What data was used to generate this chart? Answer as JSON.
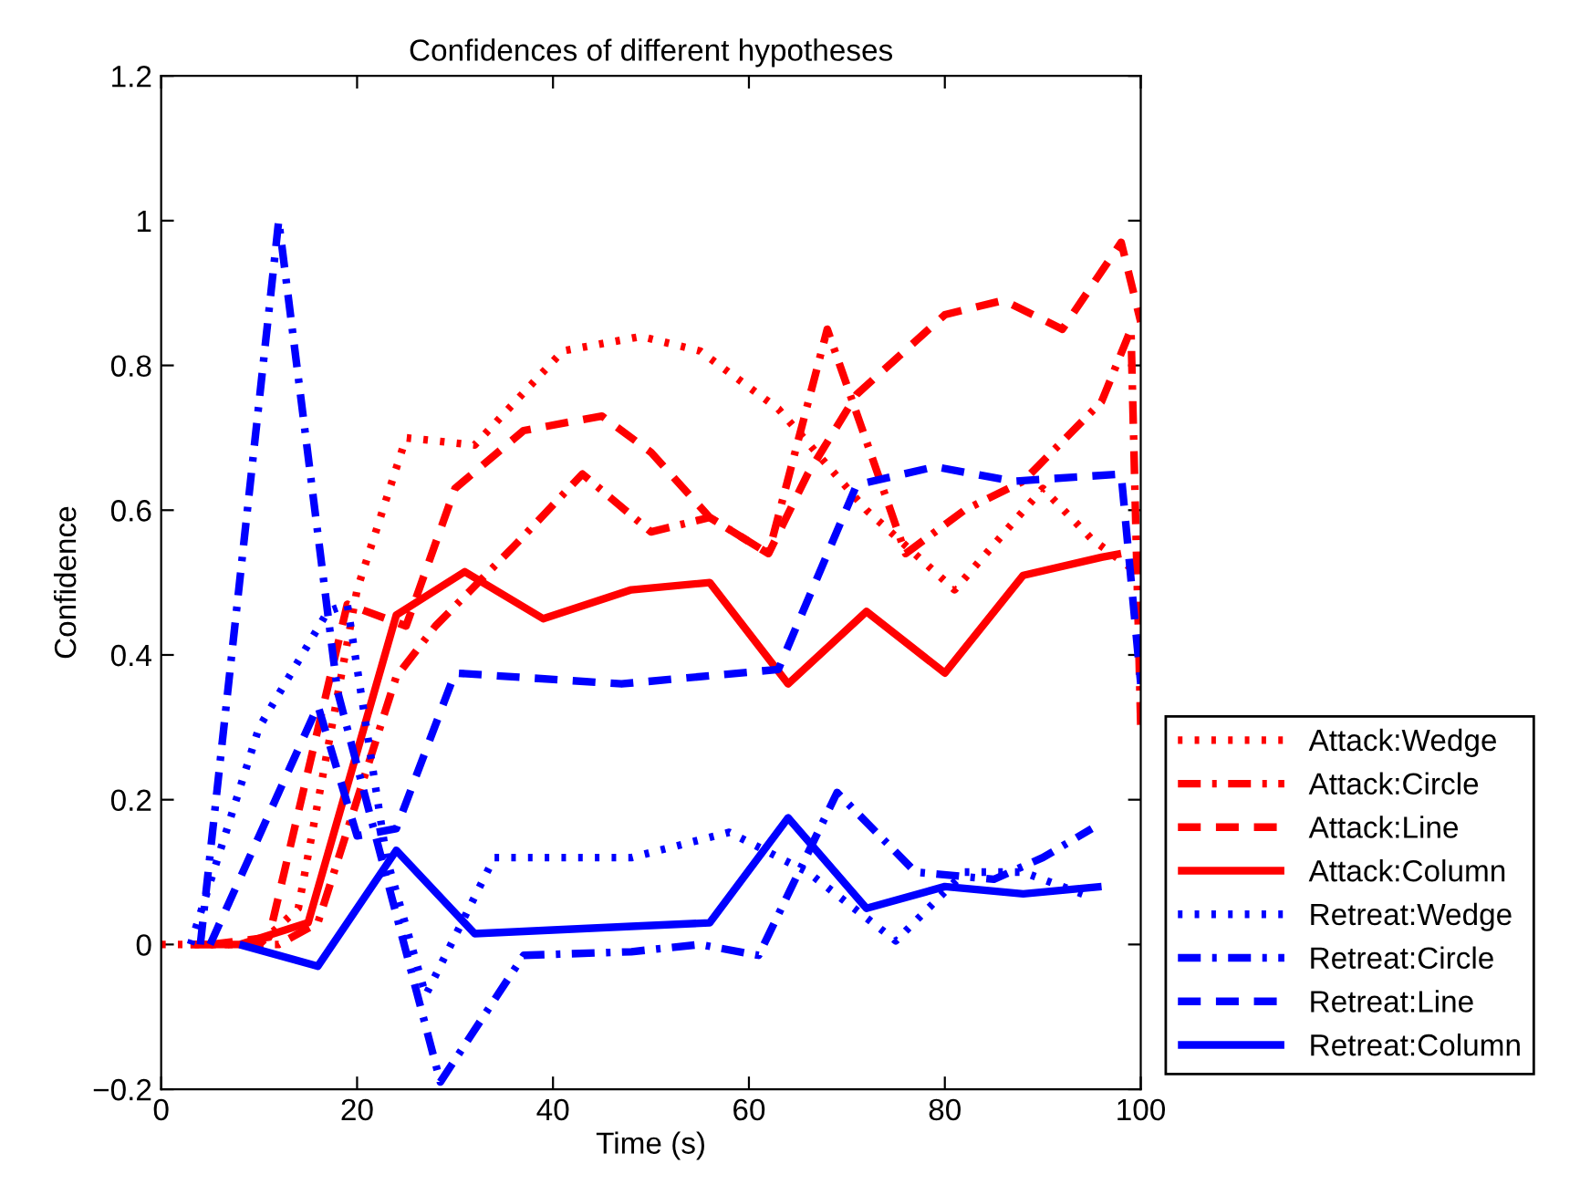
{
  "chart_data": {
    "type": "line",
    "title": "Confidences of different hypotheses",
    "xlabel": "Time (s)",
    "ylabel": "Confidence",
    "xlim": [
      0,
      100
    ],
    "xticks": [
      0,
      20,
      40,
      60,
      80,
      100
    ],
    "ylim": [
      -0.2,
      1.2
    ],
    "yticks": [
      {
        "value": -0.2,
        "label": "−0.2"
      },
      0,
      0.2,
      0.4,
      0.6,
      0.8,
      1,
      1.2
    ],
    "grid": false,
    "legend": "right",
    "series": [
      {
        "name": "Attack:Wedge",
        "color": "#ff0000",
        "line_style": "dotted",
        "x": [
          0,
          10,
          14,
          20,
          25,
          32,
          41,
          49,
          55,
          63,
          72,
          81,
          90,
          95,
          99
        ],
        "values": [
          0,
          0,
          0.05,
          0.49,
          0.7,
          0.69,
          0.82,
          0.84,
          0.82,
          0.74,
          0.6,
          0.49,
          0.63,
          0.56,
          0.52
        ]
      },
      {
        "name": "Attack:Circle",
        "color": "#ff0000",
        "line_style": "dashdot",
        "x": [
          3,
          12,
          16,
          24,
          28,
          36,
          43,
          50,
          56,
          62,
          68,
          76,
          82,
          88,
          96,
          99,
          100
        ],
        "values": [
          0,
          0,
          0.03,
          0.37,
          0.44,
          0.55,
          0.65,
          0.57,
          0.59,
          0.54,
          0.85,
          0.54,
          0.6,
          0.64,
          0.75,
          0.85,
          0.3
        ]
      },
      {
        "name": "Attack:Line",
        "color": "#ff0000",
        "line_style": "dashed",
        "x": [
          5,
          11,
          19,
          25,
          30,
          37,
          45,
          50,
          56,
          62,
          66,
          71,
          80,
          86,
          92,
          98,
          100
        ],
        "values": [
          0,
          0.01,
          0.47,
          0.44,
          0.63,
          0.71,
          0.73,
          0.68,
          0.59,
          0.54,
          0.65,
          0.76,
          0.87,
          0.89,
          0.85,
          0.97,
          0.86
        ]
      },
      {
        "name": "Attack:Column",
        "color": "#ff0000",
        "line_style": "solid",
        "x": [
          3,
          8,
          15,
          24,
          31,
          39,
          48,
          56,
          64,
          72,
          80,
          88,
          96,
          98
        ],
        "values": [
          0,
          0,
          0.03,
          0.455,
          0.515,
          0.45,
          0.49,
          0.5,
          0.36,
          0.46,
          0.375,
          0.51,
          0.535,
          0.54
        ]
      },
      {
        "name": "Retreat:Wedge",
        "color": "#0000ff",
        "line_style": "dotted",
        "x": [
          3,
          10,
          17,
          19,
          23,
          27,
          34,
          48,
          58,
          66,
          75,
          82,
          88,
          95
        ],
        "values": [
          0,
          0.3,
          0.46,
          0.47,
          0.12,
          -0.07,
          0.12,
          0.12,
          0.155,
          0.1,
          0.005,
          0.1,
          0.1,
          0.065
        ]
      },
      {
        "name": "Retreat:Circle",
        "color": "#0000ff",
        "line_style": "dashdot",
        "x": [
          4,
          12,
          18,
          28.5,
          37,
          48,
          55,
          61,
          69,
          77,
          85,
          90,
          95
        ],
        "values": [
          0,
          1.0,
          0.35,
          -0.19,
          -0.015,
          -0.01,
          0,
          -0.015,
          0.21,
          0.1,
          0.09,
          0.12,
          0.16
        ]
      },
      {
        "name": "Retreat:Line",
        "color": "#0000ff",
        "line_style": "dashed",
        "x": [
          5,
          16,
          20,
          24,
          30,
          47,
          63,
          71,
          79,
          87,
          98,
          100
        ],
        "values": [
          0,
          0.33,
          0.15,
          0.16,
          0.375,
          0.36,
          0.38,
          0.635,
          0.66,
          0.64,
          0.65,
          0.36
        ]
      },
      {
        "name": "Retreat:Column",
        "color": "#0000ff",
        "line_style": "solid",
        "x": [
          8,
          16,
          24,
          32,
          40,
          48,
          56,
          64,
          72,
          80,
          88,
          96
        ],
        "values": [
          0,
          -0.03,
          0.13,
          0.015,
          0.02,
          0.025,
          0.03,
          0.175,
          0.05,
          0.08,
          0.07,
          0.08
        ]
      }
    ]
  }
}
